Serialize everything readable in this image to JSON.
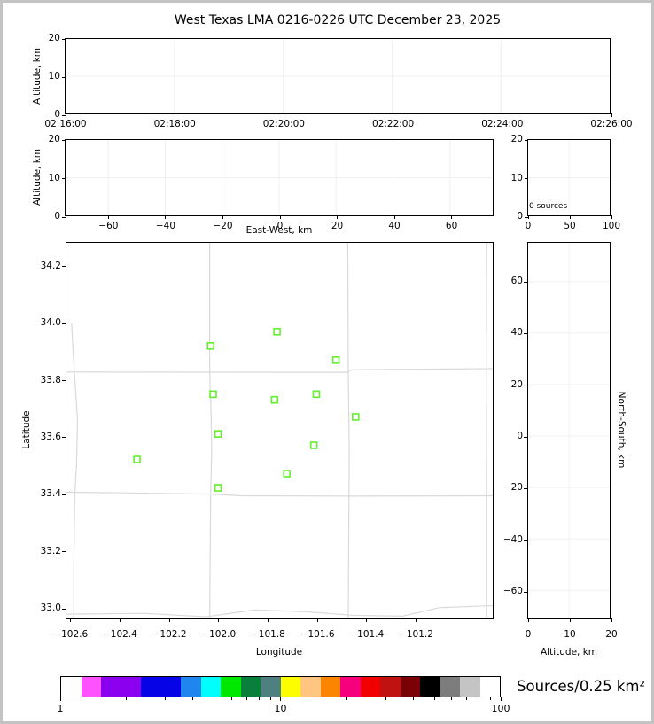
{
  "title": "West Texas LMA 0216-0226 UTC December 23, 2025",
  "colors": {
    "station_marker": "#62ee2c",
    "county_line": "#d9d9d9",
    "gridline": "#f0f0f0",
    "axis": "#000000",
    "figure_frame": "#c3c3c3"
  },
  "chart_data": [
    {
      "id": "time_height",
      "type": "scatter",
      "xlabel": "",
      "ylabel": "Altitude, km",
      "xlim": [
        0,
        10
      ],
      "xticks": [
        0,
        2,
        4,
        6,
        8,
        10
      ],
      "xticklabels": [
        "02:16:00",
        "02:18:00",
        "02:20:00",
        "02:22:00",
        "02:24:00",
        "02:26:00"
      ],
      "ylim": [
        0,
        20
      ],
      "yticks": [
        0,
        10,
        20
      ],
      "yticklabels": [
        "0",
        "10",
        "20"
      ],
      "grid_x": [
        2,
        4,
        6,
        8
      ],
      "grid_y": [
        10
      ],
      "series": []
    },
    {
      "id": "ew_height",
      "type": "scatter",
      "xlabel": "East-West, km",
      "ylabel": "Altitude, km",
      "xlim": [
        -75,
        75
      ],
      "xticks": [
        -60,
        -40,
        -20,
        0,
        20,
        40,
        60
      ],
      "xticklabels": [
        "−60",
        "−40",
        "−20",
        "0",
        "20",
        "40",
        "60"
      ],
      "ylim": [
        0,
        20
      ],
      "yticks": [
        0,
        10,
        20
      ],
      "yticklabels": [
        "0",
        "10",
        "20"
      ],
      "grid_x": [
        -60,
        -40,
        -20,
        0,
        20,
        40,
        60
      ],
      "grid_y": [
        10
      ],
      "series": []
    },
    {
      "id": "alt_histogram",
      "type": "line",
      "xlabel": "",
      "ylabel": "",
      "annotation": "0 sources",
      "xlim": [
        0,
        100
      ],
      "xticks": [
        0,
        50,
        100
      ],
      "xticklabels": [
        "0",
        "50",
        "100"
      ],
      "ylim": [
        0,
        20
      ],
      "yticks": [
        0,
        10,
        20
      ],
      "yticklabels": [
        "0",
        "10",
        "20"
      ],
      "grid_x": [
        50
      ],
      "grid_y": [
        10
      ],
      "series": []
    },
    {
      "id": "plan_view",
      "type": "scatter",
      "xlabel": "Longitude",
      "ylabel": "Latitude",
      "xlim": [
        -102.617,
        -100.882
      ],
      "xticks": [
        -102.6,
        -102.4,
        -102.2,
        -102.0,
        -101.8,
        -101.6,
        -101.4,
        -101.2
      ],
      "xticklabels": [
        "−102.6",
        "−102.4",
        "−102.2",
        "−102.0",
        "−101.8",
        "−101.6",
        "−101.4",
        "−101.2"
      ],
      "ylim": [
        32.963,
        34.283
      ],
      "yticks": [
        33.0,
        33.2,
        33.4,
        33.6,
        33.8,
        34.0,
        34.2
      ],
      "yticklabels": [
        "33.0",
        "33.2",
        "33.4",
        "33.6",
        "33.8",
        "34.0",
        "34.2"
      ],
      "grid_x": [],
      "grid_y": [],
      "series": [
        {
          "name": "LMA stations",
          "marker": "open-square",
          "color": "#62ee2c",
          "points": [
            [
              -101.76,
              33.97
            ],
            [
              -102.03,
              33.92
            ],
            [
              -101.52,
              33.87
            ],
            [
              -102.02,
              33.75
            ],
            [
              -101.77,
              33.73
            ],
            [
              -101.6,
              33.75
            ],
            [
              -101.44,
              33.67
            ],
            [
              -102.0,
              33.61
            ],
            [
              -101.61,
              33.57
            ],
            [
              -102.33,
              33.52
            ],
            [
              -101.72,
              33.47
            ],
            [
              -102.0,
              33.42
            ]
          ]
        }
      ],
      "map_lines": [
        [
          [
            -102.596,
            34.0
          ],
          [
            -102.59,
            33.9
          ],
          [
            -102.572,
            33.66
          ],
          [
            -102.576,
            33.5
          ],
          [
            -102.583,
            33.4
          ],
          [
            -102.587,
            33.15
          ],
          [
            -102.587,
            32.963
          ]
        ],
        [
          [
            -102.034,
            34.283
          ],
          [
            -102.034,
            33.828
          ],
          [
            -102.028,
            33.67
          ],
          [
            -102.026,
            33.55
          ],
          [
            -102.03,
            33.4
          ],
          [
            -102.034,
            32.963
          ]
        ],
        [
          [
            -101.472,
            34.283
          ],
          [
            -101.47,
            33.832
          ],
          [
            -101.466,
            33.55
          ],
          [
            -101.47,
            32.963
          ]
        ],
        [
          [
            -100.908,
            34.283
          ],
          [
            -100.906,
            33.84
          ],
          [
            -100.908,
            33.4
          ],
          [
            -100.908,
            32.963
          ]
        ],
        [
          [
            -102.617,
            33.828
          ],
          [
            -101.475,
            33.827
          ],
          [
            -101.455,
            33.836
          ],
          [
            -100.882,
            33.84
          ]
        ],
        [
          [
            -102.617,
            33.405
          ],
          [
            -102.2,
            33.4
          ],
          [
            -102.03,
            33.398
          ],
          [
            -101.9,
            33.392
          ],
          [
            -101.47,
            33.391
          ],
          [
            -100.882,
            33.392
          ]
        ],
        [
          [
            -102.617,
            32.975
          ],
          [
            -102.3,
            32.978
          ],
          [
            -102.05,
            32.966
          ],
          [
            -101.85,
            32.99
          ],
          [
            -101.65,
            32.984
          ],
          [
            -101.45,
            32.971
          ],
          [
            -101.25,
            32.968
          ],
          [
            -101.1,
            32.998
          ],
          [
            -100.95,
            33.003
          ],
          [
            -100.882,
            33.005
          ]
        ]
      ]
    },
    {
      "id": "ns_height",
      "type": "scatter",
      "xlabel": "Altitude, km",
      "ylabel": "North-South, km",
      "xlim": [
        0,
        20
      ],
      "xticks": [
        0,
        10,
        20
      ],
      "xticklabels": [
        "0",
        "10",
        "20"
      ],
      "ylim": [
        -70.6,
        75.1
      ],
      "yticks": [
        -60,
        -40,
        -20,
        0,
        20,
        40,
        60
      ],
      "yticklabels": [
        "−60",
        "−40",
        "−20",
        "0",
        "20",
        "40",
        "60"
      ],
      "grid_x": [
        10
      ],
      "grid_y": [
        -60,
        -40,
        -20,
        0,
        20,
        40,
        60
      ],
      "series": []
    }
  ],
  "colorbar": {
    "label": "Sources/0.25 km²",
    "scale": "log",
    "range": [
      1,
      100
    ],
    "ticks": [
      1,
      10,
      100
    ],
    "ticklabels": [
      "1",
      "10",
      "100"
    ],
    "minor_ticks": [
      2,
      3,
      4,
      5,
      6,
      7,
      8,
      9,
      20,
      30,
      40,
      50,
      60,
      70,
      80,
      90
    ],
    "segments": [
      {
        "color": "#ffffff",
        "w": 1
      },
      {
        "color": "#ff52ff",
        "w": 1
      },
      {
        "color": "#8c00f0",
        "w": 2
      },
      {
        "color": "#0603e6",
        "w": 2
      },
      {
        "color": "#1f86f0",
        "w": 1
      },
      {
        "color": "#00feff",
        "w": 1
      },
      {
        "color": "#00e800",
        "w": 1
      },
      {
        "color": "#08803c",
        "w": 1
      },
      {
        "color": "#4f8080",
        "w": 1
      },
      {
        "color": "#fdfd00",
        "w": 1
      },
      {
        "color": "#ffc581",
        "w": 1
      },
      {
        "color": "#fb8500",
        "w": 1
      },
      {
        "color": "#f6007e",
        "w": 1
      },
      {
        "color": "#f20000",
        "w": 1
      },
      {
        "color": "#c11212",
        "w": 1
      },
      {
        "color": "#7a0006",
        "w": 1
      },
      {
        "color": "#000000",
        "w": 1
      },
      {
        "color": "#7c7c7c",
        "w": 1
      },
      {
        "color": "#c4c4c4",
        "w": 1
      },
      {
        "color": "#ffffff",
        "w": 1
      }
    ]
  }
}
